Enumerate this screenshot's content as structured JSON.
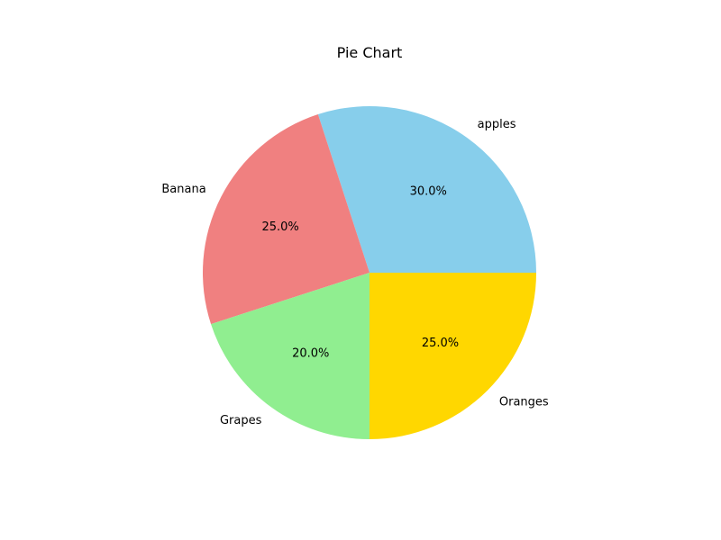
{
  "chart_data": {
    "type": "pie",
    "title": "Pie Chart",
    "categories": [
      "apples",
      "Banana",
      "Grapes",
      "Oranges"
    ],
    "values": [
      30,
      25,
      20,
      25
    ],
    "percent_labels": [
      "30.0%",
      "25.0%",
      "20.0%",
      "25.0%"
    ],
    "colors": [
      "#87ceeb",
      "#f08080",
      "#90ee90",
      "#ffd700"
    ],
    "start_angle_deg": 0,
    "direction": "counterclockwise",
    "legend": "none"
  }
}
